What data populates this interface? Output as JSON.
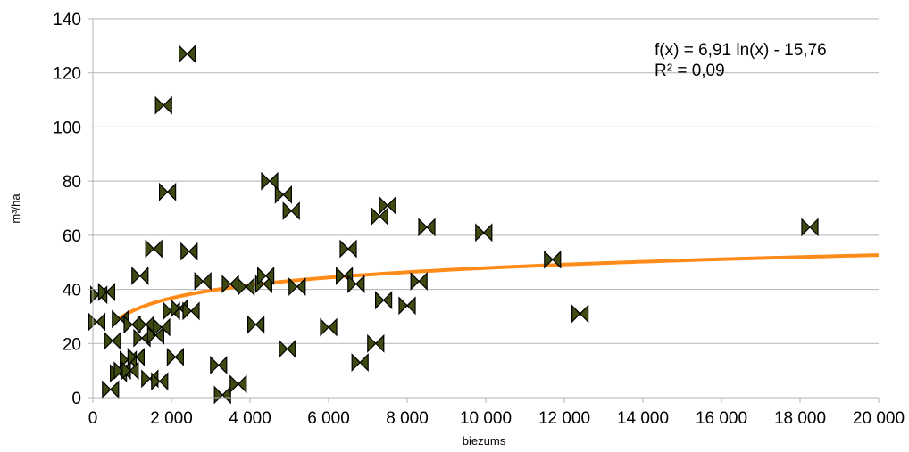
{
  "chart_data": {
    "type": "scatter",
    "xlabel": "biezums",
    "ylabel": "m³/ha",
    "xlim": [
      0,
      20000
    ],
    "ylim": [
      0,
      140
    ],
    "x_ticks": [
      0,
      2000,
      4000,
      6000,
      8000,
      10000,
      12000,
      14000,
      16000,
      18000,
      20000
    ],
    "x_tick_labels": [
      "0",
      "2 000",
      "4 000",
      "6 000",
      "8 000",
      "10 000",
      "12 000",
      "14 000",
      "16 000",
      "18 000",
      "20 000"
    ],
    "y_ticks": [
      0,
      20,
      40,
      60,
      80,
      100,
      120,
      140
    ],
    "y_tick_labels": [
      "0",
      "20",
      "40",
      "60",
      "80",
      "100",
      "120",
      "140"
    ],
    "grid": "horizontal",
    "colors": {
      "marker": "#3d4a12",
      "trend": "#ff8c1a",
      "grid": "#b3b3b3"
    },
    "series": [
      {
        "marker": "bowtie",
        "points": [
          [
            100,
            28
          ],
          [
            150,
            38
          ],
          [
            350,
            39
          ],
          [
            450,
            3
          ],
          [
            500,
            21
          ],
          [
            650,
            9
          ],
          [
            700,
            29
          ],
          [
            750,
            10
          ],
          [
            900,
            14
          ],
          [
            950,
            10
          ],
          [
            1000,
            27
          ],
          [
            1100,
            15
          ],
          [
            1200,
            45
          ],
          [
            1250,
            22
          ],
          [
            1350,
            27
          ],
          [
            1450,
            7
          ],
          [
            1550,
            55
          ],
          [
            1600,
            23
          ],
          [
            1700,
            6
          ],
          [
            1750,
            26
          ],
          [
            1800,
            108
          ],
          [
            1900,
            76
          ],
          [
            2000,
            32
          ],
          [
            2100,
            15
          ],
          [
            2200,
            33
          ],
          [
            2400,
            127
          ],
          [
            2450,
            54
          ],
          [
            2500,
            32
          ],
          [
            2800,
            43
          ],
          [
            3200,
            12
          ],
          [
            3300,
            1
          ],
          [
            3500,
            42
          ],
          [
            3700,
            5
          ],
          [
            3900,
            41
          ],
          [
            4150,
            27
          ],
          [
            4350,
            42
          ],
          [
            4400,
            45
          ],
          [
            4500,
            80
          ],
          [
            4850,
            75
          ],
          [
            4950,
            18
          ],
          [
            5050,
            69
          ],
          [
            5200,
            41
          ],
          [
            6000,
            26
          ],
          [
            6400,
            45
          ],
          [
            6500,
            55
          ],
          [
            6700,
            42
          ],
          [
            6800,
            13
          ],
          [
            7200,
            20
          ],
          [
            7300,
            67
          ],
          [
            7400,
            36
          ],
          [
            7500,
            71
          ],
          [
            8000,
            34
          ],
          [
            8300,
            43
          ],
          [
            8500,
            63
          ],
          [
            9950,
            61
          ],
          [
            11700,
            51
          ],
          [
            12400,
            31
          ],
          [
            18250,
            63
          ]
        ]
      }
    ],
    "trendline": {
      "type": "logarithmic",
      "a": 6.91,
      "b": -15.76,
      "x_start": 500,
      "x_end": 20000,
      "equation_label": "f(x) = 6,91 ln(x) - 15,76",
      "r2_label": "R² = 0,09"
    }
  }
}
